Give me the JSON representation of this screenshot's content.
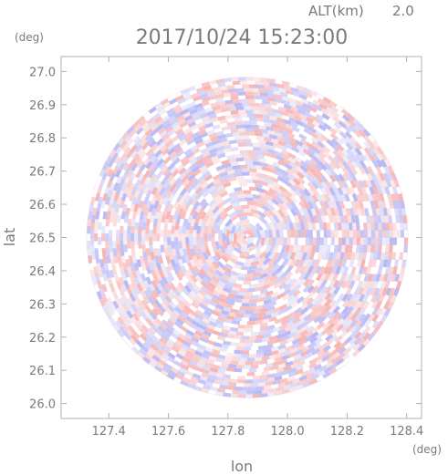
{
  "header": {
    "altitude_label": "ALT(km)",
    "altitude_value": "2.0",
    "timestamp": "2017/10/24 15:23:00"
  },
  "chart_data": {
    "type": "heatmap",
    "title": "2017/10/24 15:23:00",
    "xlabel": "lon",
    "ylabel": "lat",
    "x_unit": "(deg)",
    "y_unit": "(deg)",
    "xlim": [
      127.24,
      128.45
    ],
    "ylim": [
      25.955,
      27.045
    ],
    "x_ticks": [
      127.4,
      127.6,
      127.8,
      128.0,
      128.2,
      128.4
    ],
    "y_ticks": [
      26.0,
      26.1,
      26.2,
      26.3,
      26.4,
      26.5,
      26.6,
      26.7,
      26.8,
      26.9,
      27.0
    ],
    "x_tick_labels": [
      "127.4",
      "127.6",
      "127.8",
      "128.0",
      "128.2",
      "128.4"
    ],
    "y_tick_labels": [
      "26.0",
      "26.1",
      "26.2",
      "26.3",
      "26.4",
      "26.5",
      "26.6",
      "26.7",
      "26.8",
      "26.9",
      "27.0"
    ],
    "radar_center": [
      127.865,
      26.5
    ],
    "radar_radius_deg": 0.54,
    "colors": {
      "positive": "#f6b4b4",
      "negative": "#b8b8f4",
      "axis": "#b0b0b0",
      "text": "#7a7a7a"
    }
  }
}
